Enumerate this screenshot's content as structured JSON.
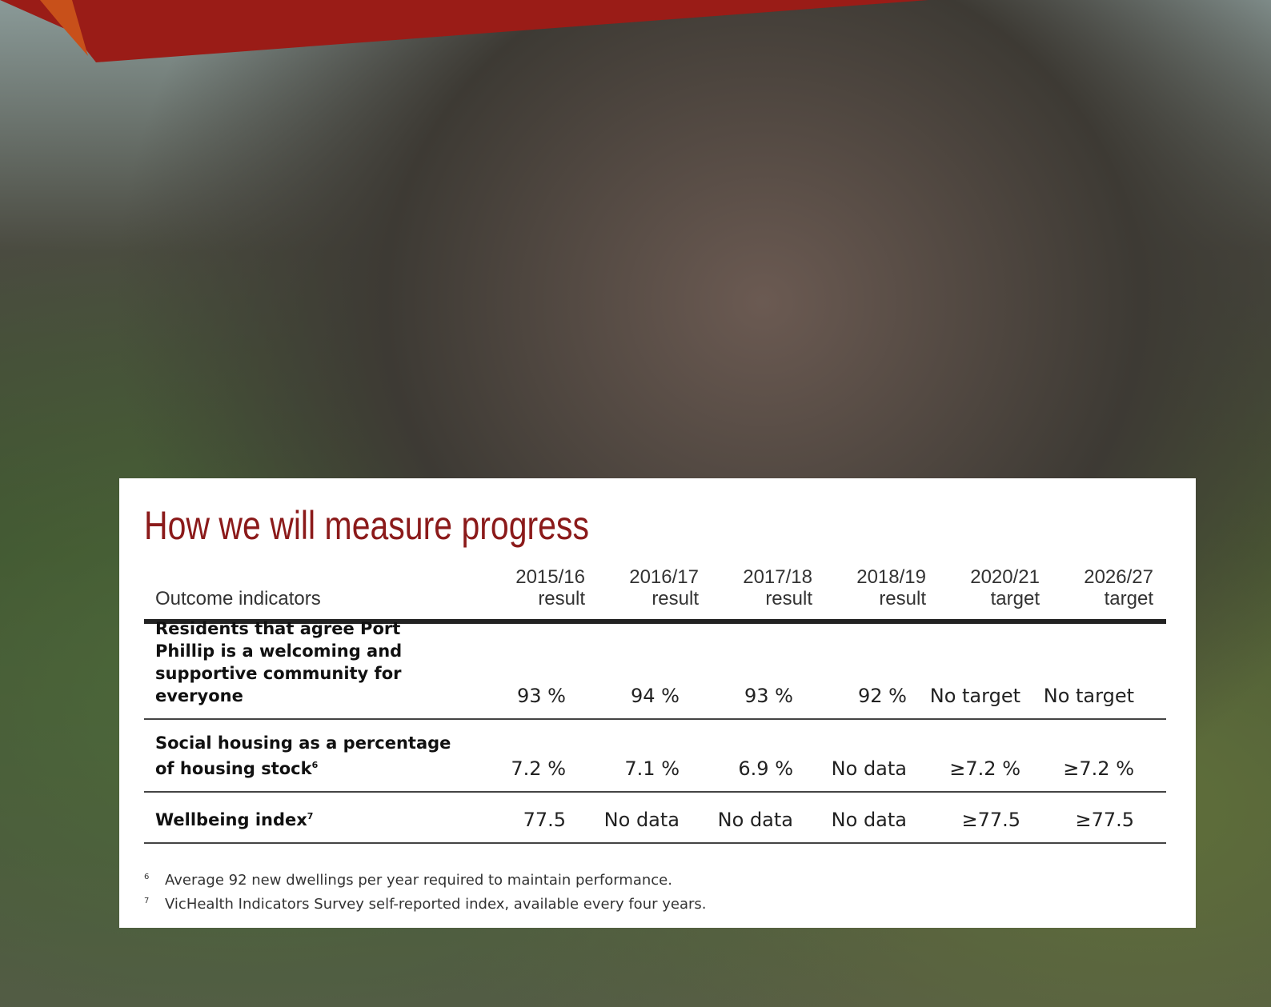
{
  "title": "How we will measure progress",
  "table": {
    "header": [
      [
        "Outcome indicators"
      ],
      [
        "2015/16",
        "result"
      ],
      [
        "2016/17",
        "result"
      ],
      [
        "2017/18",
        "result"
      ],
      [
        "2018/19",
        "result"
      ],
      [
        "2020/21",
        "target"
      ],
      [
        "2026/27",
        "target"
      ]
    ],
    "rows": [
      [
        {
          "text": "Residents that agree Port Phillip is a welcoming and supportive community for everyone"
        },
        "93 %",
        "94 %",
        "93 %",
        "92 %",
        "No target",
        "No target"
      ],
      [
        {
          "text": "Social housing as a percentage of housing stock",
          "note": "6"
        },
        "7.2 %",
        "7.1 %",
        "6.9 %",
        "No data",
        "≥7.2 %",
        "≥7.2 %"
      ],
      [
        {
          "text": "Wellbeing index",
          "note": "7"
        },
        "77.5",
        "No data",
        "No data",
        "No data",
        "≥77.5",
        "≥77.5"
      ]
    ]
  },
  "footnotes": [
    {
      "mark": "6",
      "text": "Average 92 new dwellings per year required to maintain performance."
    },
    {
      "mark": "7",
      "text": "VicHealth Indicators Survey self-reported index, available every four years."
    }
  ]
}
